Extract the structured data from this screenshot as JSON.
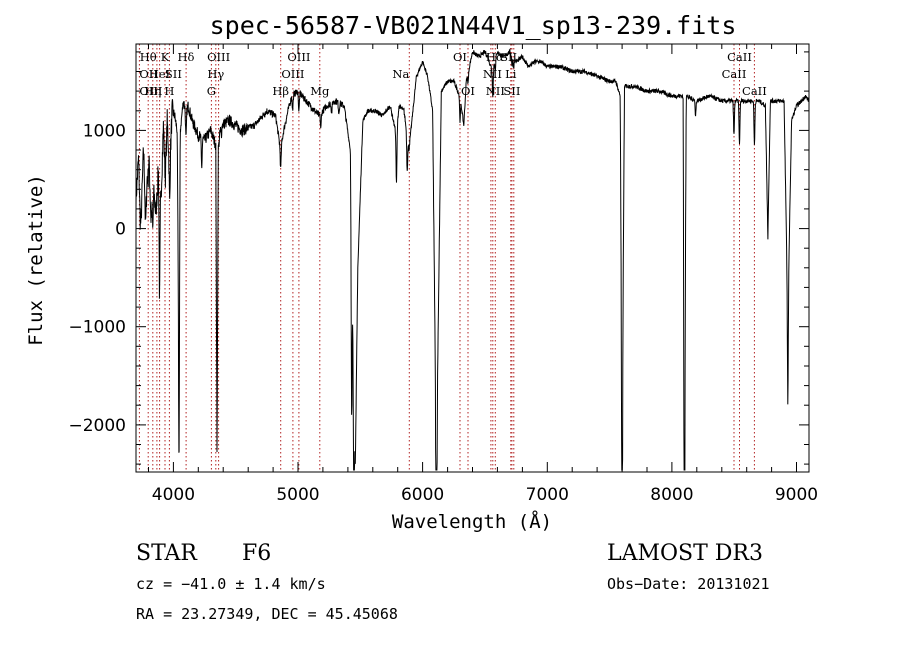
{
  "chart_data": {
    "type": "line",
    "title": "spec-56587-VB021N44V1_sp13-239.fits",
    "xlabel": "Wavelength (Å)",
    "ylabel": "Flux (relative)",
    "xlim": [
      3700,
      9100
    ],
    "ylim": [
      -2480,
      1880
    ],
    "x_ticks": [
      4000,
      5000,
      6000,
      7000,
      8000,
      9000
    ],
    "x_tick_labels": [
      "4000",
      "5000",
      "6000",
      "7000",
      "8000",
      "9000"
    ],
    "y_ticks": [
      -2000,
      -1000,
      0,
      1000
    ],
    "y_tick_labels": [
      "−2000",
      "−1000",
      "0",
      "1000"
    ],
    "spectrum_knots": [
      [
        3700,
        300
      ],
      [
        3720,
        700
      ],
      [
        3740,
        50
      ],
      [
        3760,
        800
      ],
      [
        3780,
        200
      ],
      [
        3800,
        900
      ],
      [
        3820,
        100
      ],
      [
        3840,
        400
      ],
      [
        3860,
        150
      ],
      [
        3880,
        600
      ],
      [
        3900,
        300
      ],
      [
        3920,
        1050
      ],
      [
        3935,
        500
      ],
      [
        3950,
        1100
      ],
      [
        3970,
        600
      ],
      [
        3990,
        1200
      ],
      [
        4010,
        1150
      ],
      [
        4030,
        1000
      ],
      [
        4045,
        -1250
      ],
      [
        4055,
        1000
      ],
      [
        4080,
        1300
      ],
      [
        4101,
        1200
      ],
      [
        4120,
        1250
      ],
      [
        4150,
        1100
      ],
      [
        4200,
        950
      ],
      [
        4250,
        900
      ],
      [
        4300,
        1000
      ],
      [
        4340,
        850
      ],
      [
        4350,
        -2300
      ],
      [
        4360,
        800
      ],
      [
        4380,
        1050
      ],
      [
        4450,
        1100
      ],
      [
        4550,
        1000
      ],
      [
        4650,
        1050
      ],
      [
        4750,
        1200
      ],
      [
        4820,
        1150
      ],
      [
        4860,
        800
      ],
      [
        4885,
        1000
      ],
      [
        4920,
        1200
      ],
      [
        4950,
        1350
      ],
      [
        5000,
        1400
      ],
      [
        5100,
        1250
      ],
      [
        5170,
        1150
      ],
      [
        5230,
        1250
      ],
      [
        5300,
        1300
      ],
      [
        5370,
        1250
      ],
      [
        5420,
        800
      ],
      [
        5440,
        -1000
      ],
      [
        5460,
        -2400
      ],
      [
        5480,
        -400
      ],
      [
        5520,
        1100
      ],
      [
        5560,
        1200
      ],
      [
        5620,
        1200
      ],
      [
        5680,
        1150
      ],
      [
        5740,
        1250
      ],
      [
        5790,
        950
      ],
      [
        5810,
        1250
      ],
      [
        5850,
        1200
      ],
      [
        5890,
        800
      ],
      [
        5910,
        1050
      ],
      [
        5950,
        1550
      ],
      [
        6000,
        1700
      ],
      [
        6040,
        1550
      ],
      [
        6080,
        1200
      ],
      [
        6110,
        -2400
      ],
      [
        6150,
        1400
      ],
      [
        6200,
        1500
      ],
      [
        6250,
        1500
      ],
      [
        6300,
        1350
      ],
      [
        6330,
        1050
      ],
      [
        6350,
        1500
      ],
      [
        6400,
        1800
      ],
      [
        6450,
        1750
      ],
      [
        6500,
        1800
      ],
      [
        6520,
        1750
      ],
      [
        6563,
        1600
      ],
      [
        6590,
        1800
      ],
      [
        6650,
        1750
      ],
      [
        6700,
        1800
      ],
      [
        6750,
        1700
      ],
      [
        6800,
        1750
      ],
      [
        6850,
        1650
      ],
      [
        6900,
        1700
      ],
      [
        6950,
        1700
      ],
      [
        7000,
        1650
      ],
      [
        7100,
        1650
      ],
      [
        7200,
        1600
      ],
      [
        7300,
        1600
      ],
      [
        7400,
        1550
      ],
      [
        7500,
        1500
      ],
      [
        7550,
        1500
      ],
      [
        7585,
        1350
      ],
      [
        7600,
        -2000
      ],
      [
        7620,
        1450
      ],
      [
        7700,
        1450
      ],
      [
        7800,
        1400
      ],
      [
        7900,
        1400
      ],
      [
        8000,
        1350
      ],
      [
        8090,
        1350
      ],
      [
        8100,
        -2350
      ],
      [
        8115,
        1350
      ],
      [
        8200,
        1300
      ],
      [
        8300,
        1350
      ],
      [
        8400,
        1300
      ],
      [
        8500,
        1300
      ],
      [
        8550,
        1300
      ],
      [
        8600,
        1300
      ],
      [
        8660,
        1300
      ],
      [
        8700,
        1300
      ],
      [
        8750,
        1250
      ],
      [
        8770,
        -50
      ],
      [
        8790,
        1300
      ],
      [
        8850,
        1300
      ],
      [
        8900,
        1300
      ],
      [
        8930,
        -900
      ],
      [
        8960,
        1100
      ],
      [
        9000,
        1250
      ],
      [
        9040,
        1300
      ],
      [
        9070,
        1350
      ],
      [
        9100,
        1300
      ]
    ],
    "spectrum_dips": [
      [
        3733,
        -150
      ],
      [
        3775,
        -250
      ],
      [
        3798,
        -300
      ],
      [
        3835,
        -350
      ],
      [
        3889,
        -1150
      ],
      [
        3970,
        -350
      ],
      [
        4045,
        -1250
      ],
      [
        4101,
        -300
      ],
      [
        4227,
        -300
      ],
      [
        4384,
        -100
      ],
      [
        4861,
        -200
      ],
      [
        4957,
        -150
      ],
      [
        5007,
        -200
      ],
      [
        5183,
        -150
      ],
      [
        5270,
        -100
      ],
      [
        5328,
        -100
      ],
      [
        5430,
        -1800
      ],
      [
        5448,
        -1650
      ],
      [
        5790,
        -500
      ],
      [
        5876,
        -350
      ],
      [
        6110,
        -2400
      ],
      [
        6300,
        -250
      ],
      [
        6365,
        -100
      ],
      [
        6563,
        -250
      ],
      [
        6584,
        -150
      ],
      [
        6717,
        -100
      ],
      [
        6730,
        -100
      ],
      [
        7600,
        -2000
      ],
      [
        8100,
        -2350
      ],
      [
        8190,
        -150
      ],
      [
        8498,
        -350
      ],
      [
        8542,
        -450
      ],
      [
        8662,
        -450
      ],
      [
        8770,
        -50
      ],
      [
        8930,
        -900
      ]
    ],
    "lines": [
      {
        "label": "Hθ",
        "x": 3798,
        "row": 0,
        "anchor": "middle"
      },
      {
        "label": "OII",
        "x": 3727,
        "row": 1,
        "anchor": "start"
      },
      {
        "label": "OIII",
        "x": 3727,
        "row": 2,
        "anchor": "start"
      },
      {
        "label": "Hη",
        "x": 3835,
        "row": 2,
        "anchor": "middle"
      },
      {
        "label": "K",
        "x": 3933,
        "row": 0,
        "anchor": "middle"
      },
      {
        "label": "HeI",
        "x": 3888,
        "row": 1,
        "anchor": "middle"
      },
      {
        "label": "SII",
        "x": 4000,
        "row": 1,
        "anchor": "middle"
      },
      {
        "label": "H",
        "x": 3968,
        "row": 2,
        "anchor": "middle"
      },
      {
        "label": "Hδ",
        "x": 4101,
        "row": 0,
        "anchor": "middle"
      },
      {
        "label": "OIII",
        "x": 4363,
        "row": 0,
        "anchor": "middle"
      },
      {
        "label": "Hγ",
        "x": 4340,
        "row": 1,
        "anchor": "middle"
      },
      {
        "label": "G",
        "x": 4305,
        "row": 2,
        "anchor": "middle"
      },
      {
        "label": "Hβ",
        "x": 4861,
        "row": 2,
        "anchor": "middle"
      },
      {
        "label": "OIII",
        "x": 5007,
        "row": 0,
        "anchor": "middle"
      },
      {
        "label": "OIII",
        "x": 4959,
        "row": 1,
        "anchor": "middle"
      },
      {
        "label": "Mg",
        "x": 5175,
        "row": 2,
        "anchor": "middle"
      },
      {
        "label": "Na",
        "x": 5893,
        "row": 1,
        "anchor": "end"
      },
      {
        "label": "OI",
        "x": 6300,
        "row": 0,
        "anchor": "middle"
      },
      {
        "label": "OI",
        "x": 6364,
        "row": 2,
        "anchor": "middle"
      },
      {
        "label": "Hα",
        "x": 6580,
        "row": 0,
        "anchor": "middle"
      },
      {
        "label": "SII",
        "x": 6690,
        "row": 0,
        "anchor": "middle"
      },
      {
        "label": "NII",
        "x": 6560,
        "row": 1,
        "anchor": "middle"
      },
      {
        "label": "Li",
        "x": 6707,
        "row": 1,
        "anchor": "middle"
      },
      {
        "label": "NII",
        "x": 6583,
        "row": 2,
        "anchor": "middle"
      },
      {
        "label": "SII",
        "x": 6716,
        "row": 2,
        "anchor": "middle"
      },
      {
        "label": "CaII",
        "x": 8542,
        "row": 0,
        "anchor": "middle"
      },
      {
        "label": "CaII",
        "x": 8498,
        "row": 1,
        "anchor": "middle"
      },
      {
        "label": "CaII",
        "x": 8662,
        "row": 2,
        "anchor": "middle"
      }
    ],
    "marker_wavelengths": [
      3727,
      3798,
      3835,
      3868,
      3889,
      3933,
      3968,
      4102,
      4305,
      4340,
      4363,
      4861,
      4959,
      5007,
      5175,
      5893,
      6300,
      6364,
      6548,
      6563,
      6583,
      6707,
      6716,
      6731,
      8498,
      8542,
      8662
    ],
    "marker_color": "#b22222"
  },
  "info": {
    "class": "STAR",
    "subclass": "F6",
    "survey": "LAMOST DR3",
    "cz": "cz = −41.0 ± 1.4 km/s",
    "obs_date": "Obs−Date: 20131021",
    "coords": "RA =  23.27349, DEC =  45.45068"
  }
}
